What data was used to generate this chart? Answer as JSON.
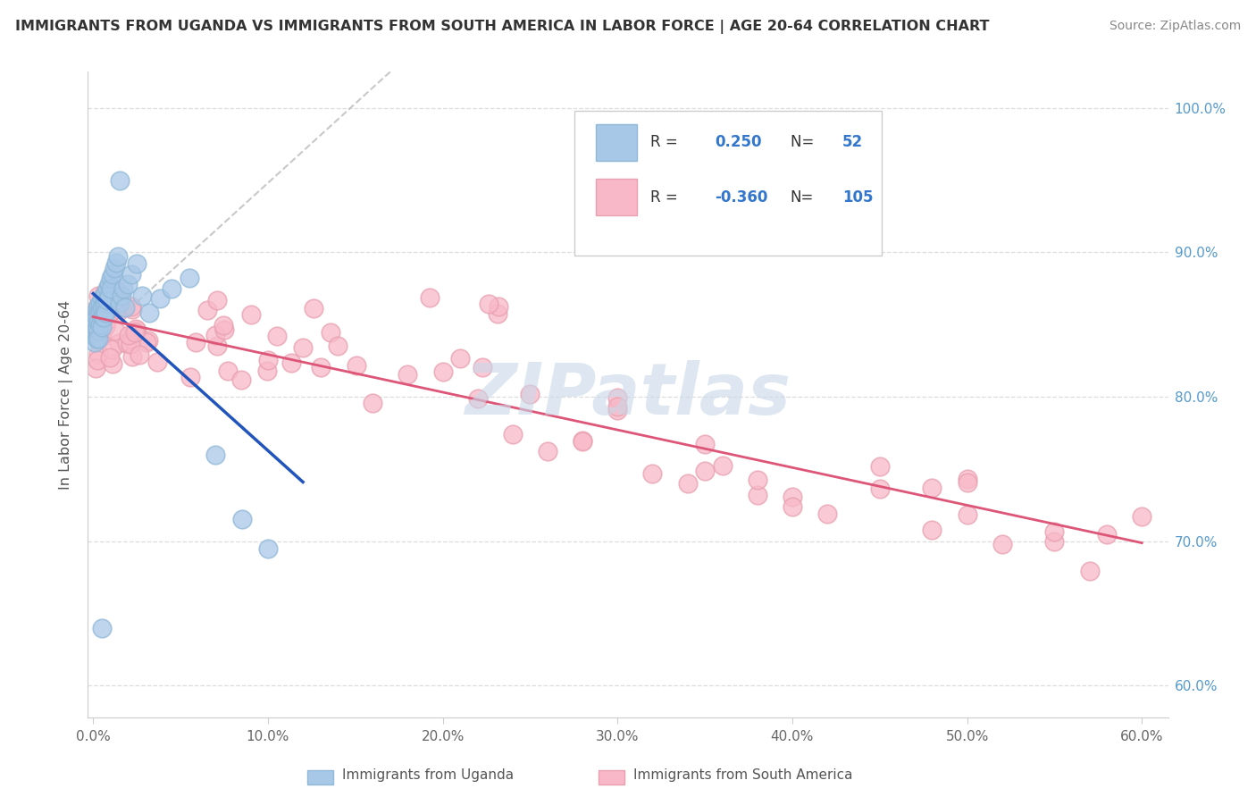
{
  "title": "IMMIGRANTS FROM UGANDA VS IMMIGRANTS FROM SOUTH AMERICA IN LABOR FORCE | AGE 20-64 CORRELATION CHART",
  "source": "Source: ZipAtlas.com",
  "ylabel": "In Labor Force | Age 20-64",
  "xlim": [
    -0.003,
    0.615
  ],
  "ylim": [
    0.578,
    1.025
  ],
  "xtick_vals": [
    0.0,
    0.1,
    0.2,
    0.3,
    0.4,
    0.5,
    0.6
  ],
  "xticklabels": [
    "0.0%",
    "10.0%",
    "20.0%",
    "30.0%",
    "40.0%",
    "50.0%",
    "60.0%"
  ],
  "ytick_vals": [
    0.6,
    0.7,
    0.8,
    0.9,
    1.0
  ],
  "yticklabels": [
    "60.0%",
    "70.0%",
    "80.0%",
    "90.0%",
    "100.0%"
  ],
  "legend_r_uganda": "0.250",
  "legend_n_uganda": "52",
  "legend_r_south": "-0.360",
  "legend_n_south": "105",
  "uganda_fill": "#a8c8e8",
  "uganda_edge": "#90b8d8",
  "south_fill": "#f8b8c8",
  "south_edge": "#e8a0b0",
  "uganda_line_color": "#2255bb",
  "south_line_color": "#dd5577",
  "diagonal_color": "#bbbbbb",
  "watermark": "ZIPatlas",
  "watermark_color": "#c8d8e8",
  "grid_color": "#dddddd",
  "right_tick_color": "#5599cc"
}
